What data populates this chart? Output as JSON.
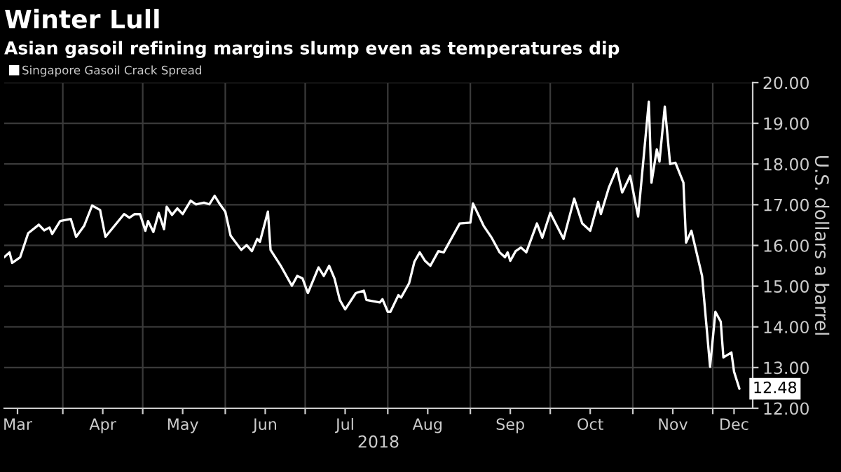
{
  "chart_data": {
    "type": "line",
    "title": "Winter Lull",
    "subtitle": "Asian gasoil refining margins slump even as temperatures dip",
    "xlabel": "2018",
    "ylabel": "U.S. dollars a barrel",
    "x": [
      "2018-03-10",
      "2018-03-12",
      "2018-03-13",
      "2018-03-16",
      "2018-03-19",
      "2018-03-23",
      "2018-03-25",
      "2018-03-27",
      "2018-03-28",
      "2018-03-31",
      "2018-04-04",
      "2018-04-06",
      "2018-04-09",
      "2018-04-12",
      "2018-04-15",
      "2018-04-17",
      "2018-04-24",
      "2018-04-26",
      "2018-04-28",
      "2018-04-30",
      "2018-05-02",
      "2018-05-03",
      "2018-05-05",
      "2018-05-07",
      "2018-05-09",
      "2018-05-10",
      "2018-05-12",
      "2018-05-14",
      "2018-05-16",
      "2018-05-19",
      "2018-05-21",
      "2018-05-24",
      "2018-05-26",
      "2018-05-28",
      "2018-05-30",
      "2018-06-01",
      "2018-06-03",
      "2018-06-07",
      "2018-06-09",
      "2018-06-11",
      "2018-06-13",
      "2018-06-14",
      "2018-06-17",
      "2018-06-18",
      "2018-06-22",
      "2018-06-26",
      "2018-06-28",
      "2018-06-30",
      "2018-07-02",
      "2018-07-06",
      "2018-07-08",
      "2018-07-10",
      "2018-07-12",
      "2018-07-14",
      "2018-07-16",
      "2018-07-20",
      "2018-07-23",
      "2018-07-24",
      "2018-07-29",
      "2018-07-30",
      "2018-08-01",
      "2018-08-02",
      "2018-08-05",
      "2018-08-06",
      "2018-08-09",
      "2018-08-11",
      "2018-08-13",
      "2018-08-15",
      "2018-08-17",
      "2018-08-20",
      "2018-08-22",
      "2018-08-28",
      "2018-09-01",
      "2018-09-02",
      "2018-09-06",
      "2018-09-09",
      "2018-09-12",
      "2018-09-14",
      "2018-09-15",
      "2018-09-16",
      "2018-09-18",
      "2018-09-20",
      "2018-09-22",
      "2018-09-26",
      "2018-09-28",
      "2018-10-01",
      "2018-10-03",
      "2018-10-06",
      "2018-10-10",
      "2018-10-13",
      "2018-10-16",
      "2018-10-19",
      "2018-10-20",
      "2018-10-23",
      "2018-10-26",
      "2018-10-28",
      "2018-10-31",
      "2018-11-03",
      "2018-11-07",
      "2018-11-08",
      "2018-11-10",
      "2018-11-11",
      "2018-11-13",
      "2018-11-15",
      "2018-11-17",
      "2018-11-20",
      "2018-11-21",
      "2018-11-23",
      "2018-11-27",
      "2018-11-30",
      "2018-12-02",
      "2018-12-04",
      "2018-12-05",
      "2018-12-08",
      "2018-12-09",
      "2018-12-11"
    ],
    "series": [
      {
        "name": "Singapore Gasoil Crack Spread",
        "color": "#ffffff",
        "values": [
          15.71,
          15.83,
          15.57,
          15.71,
          16.3,
          16.51,
          16.37,
          16.44,
          16.28,
          16.6,
          16.65,
          16.21,
          16.48,
          16.98,
          16.87,
          16.21,
          16.77,
          16.68,
          16.77,
          16.77,
          16.36,
          16.6,
          16.33,
          16.8,
          16.4,
          16.95,
          16.75,
          16.91,
          16.77,
          17.1,
          17.01,
          17.05,
          17.01,
          17.22,
          17.01,
          16.83,
          16.24,
          15.89,
          16.01,
          15.86,
          16.16,
          16.09,
          16.83,
          15.89,
          15.48,
          15.01,
          15.25,
          15.19,
          14.83,
          15.46,
          15.25,
          15.5,
          15.19,
          14.66,
          14.43,
          14.83,
          14.89,
          14.66,
          14.6,
          14.68,
          14.37,
          14.37,
          14.78,
          14.72,
          15.07,
          15.6,
          15.83,
          15.62,
          15.5,
          15.86,
          15.83,
          16.54,
          16.56,
          17.03,
          16.48,
          16.19,
          15.83,
          15.71,
          15.83,
          15.62,
          15.86,
          15.95,
          15.83,
          16.54,
          16.19,
          16.8,
          16.54,
          16.16,
          17.15,
          16.54,
          16.36,
          17.07,
          16.77,
          17.42,
          17.89,
          17.3,
          17.71,
          16.71,
          19.53,
          17.54,
          18.36,
          18.06,
          19.41,
          18.0,
          18.03,
          17.54,
          16.07,
          16.36,
          15.25,
          13.02,
          14.37,
          14.13,
          13.25,
          13.37,
          12.9,
          12.48
        ]
      }
    ],
    "xlim": [
      "2018-03-10",
      "2018-12-16"
    ],
    "xticks": [
      {
        "value": "2018-03-15",
        "label": "Mar"
      },
      {
        "value": "2018-04-01",
        "label": null
      },
      {
        "value": "2018-04-16",
        "label": "Apr"
      },
      {
        "value": "2018-05-01",
        "label": null
      },
      {
        "value": "2018-05-16",
        "label": "May"
      },
      {
        "value": "2018-06-01",
        "label": null
      },
      {
        "value": "2018-06-16",
        "label": "Jun"
      },
      {
        "value": "2018-07-01",
        "label": null
      },
      {
        "value": "2018-07-16",
        "label": "Jul"
      },
      {
        "value": "2018-08-01",
        "label": null
      },
      {
        "value": "2018-08-16",
        "label": "Aug"
      },
      {
        "value": "2018-09-01",
        "label": null
      },
      {
        "value": "2018-09-16",
        "label": "Sep"
      },
      {
        "value": "2018-10-01",
        "label": null
      },
      {
        "value": "2018-10-16",
        "label": "Oct"
      },
      {
        "value": "2018-11-01",
        "label": null
      },
      {
        "value": "2018-11-16",
        "label": "Nov"
      },
      {
        "value": "2018-12-01",
        "label": null
      },
      {
        "value": "2018-12-09",
        "label": "Dec"
      }
    ],
    "ylim": [
      12,
      20
    ],
    "yticks": [
      {
        "value": 12,
        "label": "12.00"
      },
      {
        "value": 13,
        "label": "13.00"
      },
      {
        "value": 14,
        "label": "14.00"
      },
      {
        "value": 15,
        "label": "15.00"
      },
      {
        "value": 16,
        "label": "16.00"
      },
      {
        "value": 17,
        "label": "17.00"
      },
      {
        "value": 18,
        "label": "18.00"
      },
      {
        "value": 19,
        "label": "19.00"
      },
      {
        "value": 20,
        "label": "20.00"
      }
    ],
    "annotations": [
      {
        "text": "12.48",
        "x": "2018-12-11",
        "y": 12.48
      }
    ],
    "grid": true,
    "legend": "top left",
    "line_style": "solid",
    "marker": "none"
  }
}
